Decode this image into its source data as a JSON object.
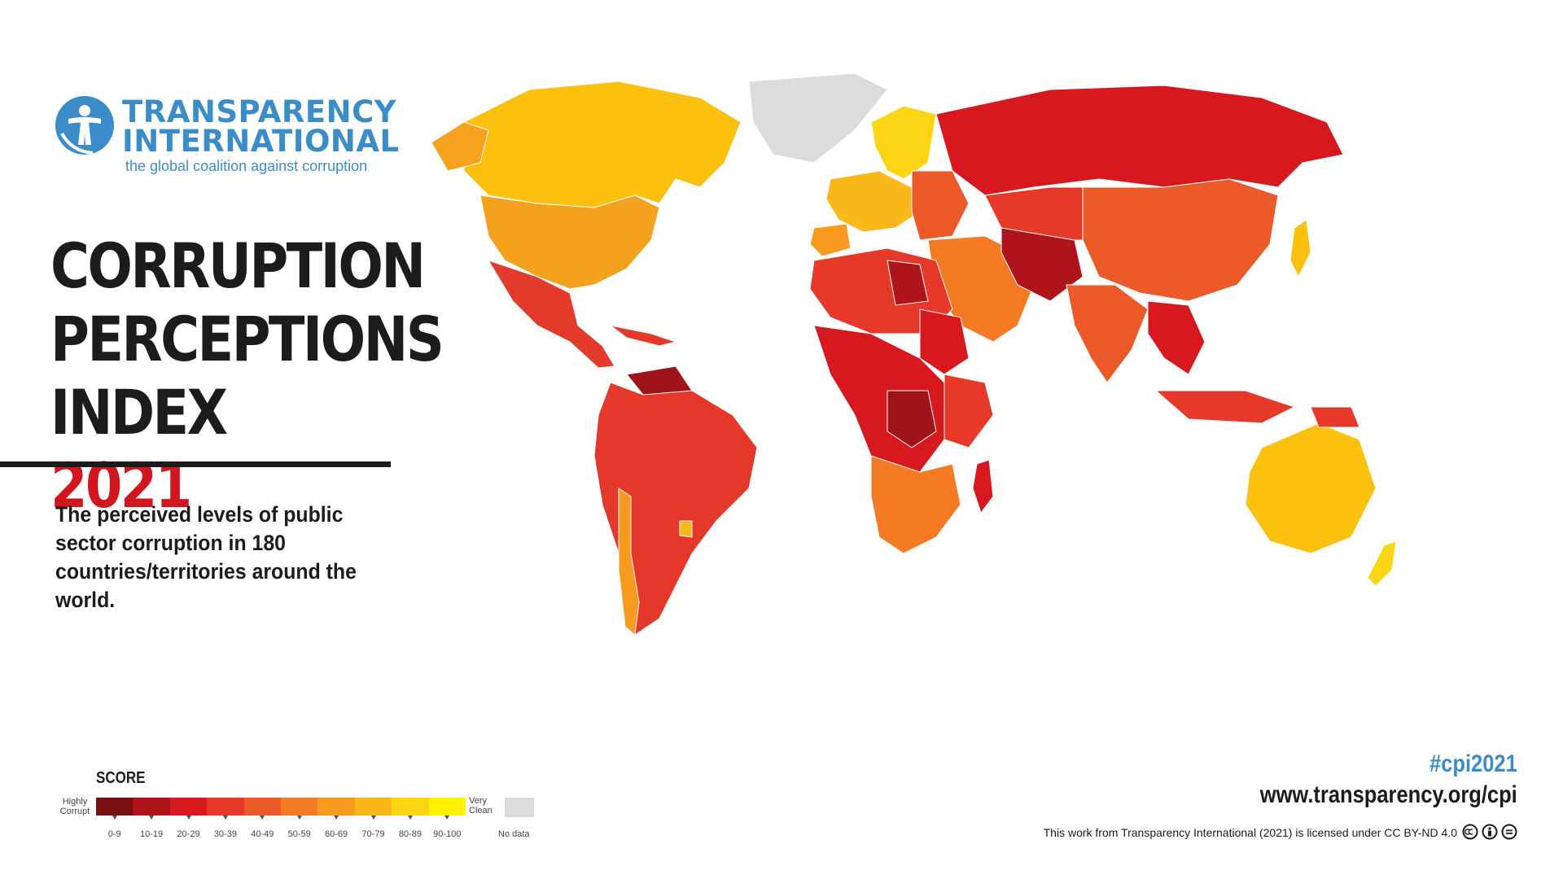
{
  "logo": {
    "line1": "TRANSPARENCY",
    "line2": "INTERNATIONAL",
    "tagline": "the global coalition against corruption"
  },
  "title": {
    "line1": "CORRUPTION",
    "line2": "PERCEPTIONS",
    "line3_prefix": "INDEX ",
    "year": "2021"
  },
  "subtitle": "The perceived levels of public sector corruption in 180 countries/territories around the world.",
  "legend": {
    "title": "SCORE",
    "low_label": "Highly\nCorrupt",
    "high_label": "Very\nClean",
    "bins": [
      {
        "label": "0-9",
        "color": "#7a0f12"
      },
      {
        "label": "10-19",
        "color": "#b0141b"
      },
      {
        "label": "20-29",
        "color": "#d7191f"
      },
      {
        "label": "30-39",
        "color": "#e6392a"
      },
      {
        "label": "40-49",
        "color": "#ed5a2a"
      },
      {
        "label": "50-59",
        "color": "#f47a23"
      },
      {
        "label": "60-69",
        "color": "#f79a1e"
      },
      {
        "label": "70-79",
        "color": "#fab81a"
      },
      {
        "label": "80-89",
        "color": "#fcd514"
      },
      {
        "label": "90-100",
        "color": "#fff200"
      }
    ],
    "nodata_label": "No data",
    "nodata_color": "#dcdcdc"
  },
  "footer": {
    "hashtag": "#cpi2021",
    "url": "www.transparency.org/cpi",
    "license": "This work from Transparency International (2021) is licensed under CC BY-ND 4.0"
  },
  "colors": {
    "brand_blue": "#3a8dc9",
    "accent_red": "#d2161e",
    "text_dark": "#1c1c1c"
  },
  "icons": [
    "transparency-logo-icon",
    "cc-icon",
    "by-icon",
    "nd-icon"
  ]
}
